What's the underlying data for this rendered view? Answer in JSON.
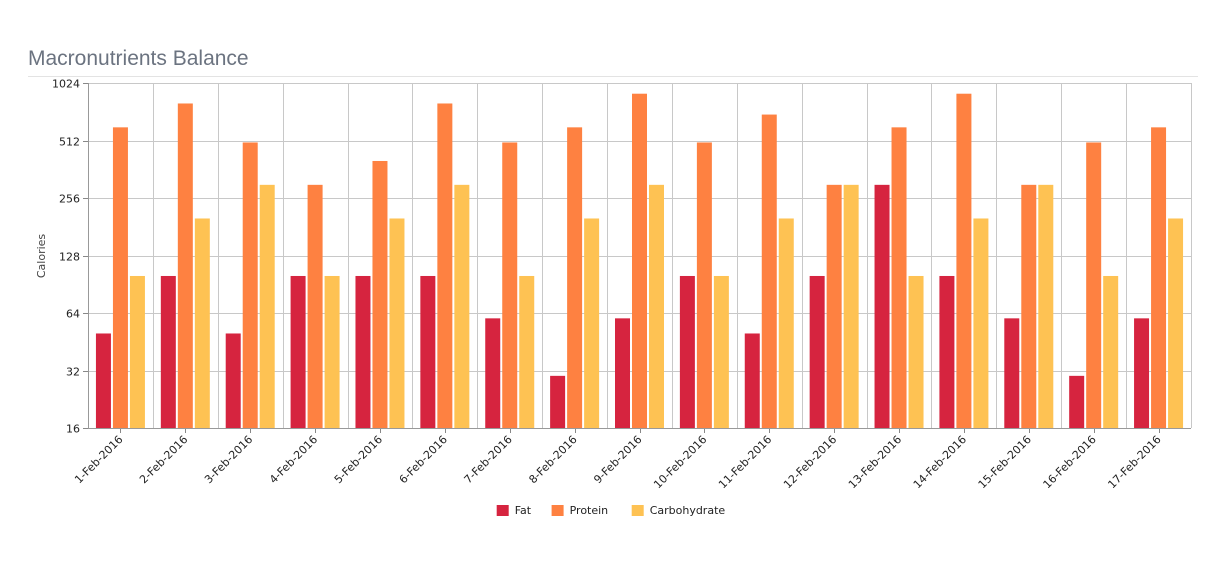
{
  "chart_data": {
    "type": "bar",
    "title": "Macronutrients Balance",
    "xlabel": "",
    "ylabel": "Calories",
    "yscale": "log2",
    "ylim": [
      16,
      1024
    ],
    "yticks": [
      16,
      32,
      64,
      128,
      256,
      512,
      1024
    ],
    "grid": true,
    "legend_position": "bottom",
    "categories": [
      "1-Feb-2016",
      "2-Feb-2016",
      "3-Feb-2016",
      "4-Feb-2016",
      "5-Feb-2016",
      "6-Feb-2016",
      "7-Feb-2016",
      "8-Feb-2016",
      "9-Feb-2016",
      "10-Feb-2016",
      "11-Feb-2016",
      "12-Feb-2016",
      "13-Feb-2016",
      "14-Feb-2016",
      "15-Feb-2016",
      "16-Feb-2016",
      "17-Feb-2016"
    ],
    "series": [
      {
        "name": "Fat",
        "color": "#d6243f",
        "values": [
          50,
          100,
          50,
          100,
          100,
          100,
          60,
          30,
          60,
          100,
          50,
          100,
          300,
          100,
          60,
          30,
          60
        ]
      },
      {
        "name": "Protein",
        "color": "#fe8141",
        "values": [
          600,
          800,
          500,
          300,
          400,
          800,
          500,
          600,
          900,
          500,
          700,
          300,
          600,
          900,
          300,
          500,
          600
        ]
      },
      {
        "name": "Carbohydrate",
        "color": "#fec253",
        "values": [
          100,
          200,
          300,
          100,
          200,
          300,
          100,
          200,
          300,
          100,
          200,
          300,
          100,
          200,
          300,
          100,
          200
        ]
      }
    ]
  }
}
